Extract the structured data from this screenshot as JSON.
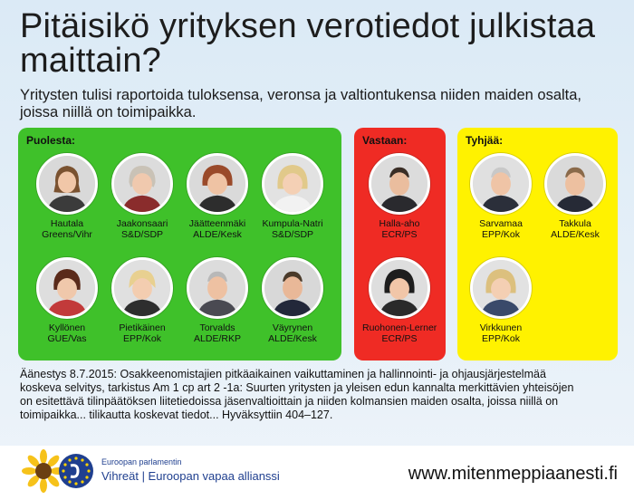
{
  "title": "Pitäisikö yrityksen verotiedot julkistaa maittain?",
  "subtitle": "Yritysten tulisi raportoida tuloksensa, veronsa ja valtiontukensa niiden maiden osalta, joissa niillä on toimipaikka.",
  "groups": {
    "for": {
      "label": "Puolesta:",
      "color": "#3fc12a",
      "members": [
        {
          "name": "Hautala",
          "party": "Greens/Vihr"
        },
        {
          "name": "Jaakonsaari",
          "party": "S&D/SDP"
        },
        {
          "name": "Jäätteenmäki",
          "party": "ALDE/Kesk"
        },
        {
          "name": "Kumpula-Natri",
          "party": "S&D/SDP"
        },
        {
          "name": "Kyllönen",
          "party": "GUE/Vas"
        },
        {
          "name": "Pietikäinen",
          "party": "EPP/Kok"
        },
        {
          "name": "Torvalds",
          "party": "ALDE/RKP"
        },
        {
          "name": "Väyrynen",
          "party": "ALDE/Kesk"
        }
      ]
    },
    "against": {
      "label": "Vastaan:",
      "color": "#ef2b24",
      "members": [
        {
          "name": "Halla-aho",
          "party": "ECR/PS"
        },
        {
          "name": "Ruohonen-Lerner",
          "party": "ECR/PS"
        }
      ]
    },
    "empty": {
      "label": "Tyhjää:",
      "color": "#fff200",
      "members": [
        {
          "name": "Sarvamaa",
          "party": "EPP/Kok"
        },
        {
          "name": "Takkula",
          "party": "ALDE/Kesk"
        },
        {
          "name": "Virkkunen",
          "party": "EPP/Kok"
        }
      ]
    }
  },
  "vote_text": "Äänestys 8.7.2015: Osakkeenomistajien pitkäaikainen vaikuttaminen ja hallinnointi- ja ohjausjärjestelmää koskeva selvitys, tarkistus Am 1 cp art 2 -1a: Suurten yritysten ja yleisen edun kannalta merkittävien yhteisöjen on esitettävä tilinpäätöksen liitetiedoissa jäsenvaltioittain ja niiden kolmansien maiden osalta, joissa niillä on toimipaikka... tilikautta koskevat tiedot... Hyväksyttiin 404–127.",
  "footer": {
    "ep_small": "Euroopan parlamentin",
    "ep_big": "Vihreät | Euroopan vapaa allianssi",
    "website": "www.mitenmeppiaanesti.fi"
  },
  "icons": {
    "portrait": "person-portrait-icon",
    "sunflower": "sunflower-logo",
    "eu": "eu-stars-logo"
  }
}
